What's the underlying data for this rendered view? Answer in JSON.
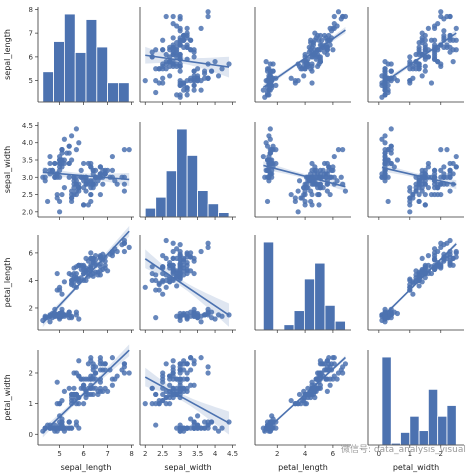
{
  "chart_data": {
    "type": "pairplot",
    "variables": [
      "sepal_length",
      "sepal_width",
      "petal_length",
      "petal_width"
    ],
    "ranges": {
      "sepal_length": [
        4.1,
        8.1
      ],
      "sepal_width": [
        1.85,
        4.6
      ],
      "petal_length": [
        0.4,
        7.3
      ],
      "petal_width": [
        -0.35,
        2.75
      ]
    },
    "ticks": {
      "sepal_length": [
        4,
        5,
        6,
        7,
        8
      ],
      "sepal_width": [
        2.0,
        2.5,
        3.0,
        3.5,
        4.0,
        4.5
      ],
      "petal_length": [
        0,
        2,
        4,
        6
      ],
      "petal_width": [
        0,
        1,
        2
      ]
    },
    "colors": {
      "points": "#4c72b0",
      "bars": "#4c72b0",
      "band": "#4c72b0",
      "axes": "#333333"
    },
    "histograms": {
      "sepal_length": {
        "bins": [
          4.3,
          4.75,
          5.2,
          5.65,
          6.1,
          6.55,
          7.0,
          7.45,
          7.9
        ],
        "counts": [
          11,
          22,
          32,
          18,
          30,
          20,
          7,
          7
        ]
      },
      "sepal_width": {
        "bins": [
          2.0,
          2.3,
          2.6,
          2.9,
          3.2,
          3.5,
          3.8,
          4.1,
          4.4
        ],
        "counts": [
          4,
          9,
          21,
          40,
          28,
          12,
          6,
          2
        ]
      },
      "petal_length": {
        "bins": [
          1.0,
          1.74,
          2.48,
          3.21,
          3.95,
          4.69,
          5.43,
          6.16,
          6.9
        ],
        "counts": [
          50,
          0,
          3,
          11,
          29,
          38,
          14,
          5
        ]
      },
      "petal_width": {
        "bins": [
          0.1,
          0.4,
          0.7,
          1.0,
          1.3,
          1.6,
          1.9,
          2.2,
          2.5
        ],
        "counts": [
          49,
          1,
          7,
          16,
          8,
          31,
          16,
          22
        ]
      }
    },
    "samples": [
      [
        5.1,
        3.5,
        1.4,
        0.2
      ],
      [
        4.9,
        3.0,
        1.4,
        0.2
      ],
      [
        4.7,
        3.2,
        1.3,
        0.2
      ],
      [
        4.6,
        3.1,
        1.5,
        0.2
      ],
      [
        5.0,
        3.6,
        1.4,
        0.2
      ],
      [
        5.4,
        3.9,
        1.7,
        0.4
      ],
      [
        4.6,
        3.4,
        1.4,
        0.3
      ],
      [
        5.0,
        3.4,
        1.5,
        0.2
      ],
      [
        4.4,
        2.9,
        1.4,
        0.2
      ],
      [
        4.9,
        3.1,
        1.5,
        0.1
      ],
      [
        5.4,
        3.7,
        1.5,
        0.2
      ],
      [
        4.8,
        3.4,
        1.6,
        0.2
      ],
      [
        4.8,
        3.0,
        1.4,
        0.1
      ],
      [
        4.3,
        3.0,
        1.1,
        0.1
      ],
      [
        5.8,
        4.0,
        1.2,
        0.2
      ],
      [
        5.7,
        4.4,
        1.5,
        0.4
      ],
      [
        5.4,
        3.9,
        1.3,
        0.4
      ],
      [
        5.1,
        3.5,
        1.4,
        0.3
      ],
      [
        5.7,
        3.8,
        1.7,
        0.3
      ],
      [
        5.1,
        3.8,
        1.5,
        0.3
      ],
      [
        5.4,
        3.4,
        1.7,
        0.2
      ],
      [
        5.1,
        3.7,
        1.5,
        0.4
      ],
      [
        4.6,
        3.6,
        1.0,
        0.2
      ],
      [
        5.1,
        3.3,
        1.7,
        0.5
      ],
      [
        4.8,
        3.4,
        1.9,
        0.2
      ],
      [
        5.0,
        3.0,
        1.6,
        0.2
      ],
      [
        5.0,
        3.4,
        1.6,
        0.4
      ],
      [
        5.2,
        3.5,
        1.5,
        0.2
      ],
      [
        5.2,
        3.4,
        1.4,
        0.2
      ],
      [
        4.7,
        3.2,
        1.6,
        0.2
      ],
      [
        4.8,
        3.1,
        1.6,
        0.2
      ],
      [
        5.4,
        3.4,
        1.5,
        0.4
      ],
      [
        5.2,
        4.1,
        1.5,
        0.1
      ],
      [
        5.5,
        4.2,
        1.4,
        0.2
      ],
      [
        4.9,
        3.1,
        1.5,
        0.2
      ],
      [
        5.0,
        3.2,
        1.2,
        0.2
      ],
      [
        5.5,
        3.5,
        1.3,
        0.2
      ],
      [
        4.4,
        3.0,
        1.3,
        0.2
      ],
      [
        5.1,
        3.4,
        1.5,
        0.2
      ],
      [
        5.0,
        3.5,
        1.3,
        0.3
      ],
      [
        4.5,
        2.3,
        1.3,
        0.3
      ],
      [
        4.4,
        3.2,
        1.3,
        0.2
      ],
      [
        5.0,
        3.5,
        1.6,
        0.6
      ],
      [
        5.1,
        3.8,
        1.9,
        0.4
      ],
      [
        4.8,
        3.0,
        1.4,
        0.3
      ],
      [
        5.1,
        3.8,
        1.6,
        0.2
      ],
      [
        4.6,
        3.2,
        1.4,
        0.2
      ],
      [
        5.3,
        3.7,
        1.5,
        0.2
      ],
      [
        5.0,
        3.3,
        1.4,
        0.2
      ],
      [
        7.0,
        3.2,
        4.7,
        1.4
      ],
      [
        6.4,
        3.2,
        4.5,
        1.5
      ],
      [
        6.9,
        3.1,
        4.9,
        1.5
      ],
      [
        5.5,
        2.3,
        4.0,
        1.3
      ],
      [
        6.5,
        2.8,
        4.6,
        1.5
      ],
      [
        5.7,
        2.8,
        4.5,
        1.3
      ],
      [
        6.3,
        3.3,
        4.7,
        1.6
      ],
      [
        4.9,
        2.4,
        3.3,
        1.0
      ],
      [
        6.6,
        2.9,
        4.6,
        1.3
      ],
      [
        5.2,
        2.7,
        3.9,
        1.4
      ],
      [
        5.0,
        2.0,
        3.5,
        1.0
      ],
      [
        5.9,
        3.0,
        4.2,
        1.5
      ],
      [
        6.0,
        2.2,
        4.0,
        1.0
      ],
      [
        6.1,
        2.9,
        4.7,
        1.4
      ],
      [
        5.6,
        2.9,
        3.6,
        1.3
      ],
      [
        6.7,
        3.1,
        4.4,
        1.4
      ],
      [
        5.6,
        3.0,
        4.5,
        1.5
      ],
      [
        5.8,
        2.7,
        4.1,
        1.0
      ],
      [
        6.2,
        2.2,
        4.5,
        1.5
      ],
      [
        5.6,
        2.5,
        3.9,
        1.1
      ],
      [
        5.9,
        3.2,
        4.8,
        1.8
      ],
      [
        6.1,
        2.8,
        4.0,
        1.3
      ],
      [
        6.3,
        2.5,
        4.9,
        1.5
      ],
      [
        6.1,
        2.8,
        4.7,
        1.2
      ],
      [
        6.4,
        2.9,
        4.3,
        1.3
      ],
      [
        6.6,
        3.0,
        4.4,
        1.4
      ],
      [
        6.8,
        2.8,
        4.8,
        1.4
      ],
      [
        6.7,
        3.0,
        5.0,
        1.7
      ],
      [
        6.0,
        2.9,
        4.5,
        1.5
      ],
      [
        5.7,
        2.6,
        3.5,
        1.0
      ],
      [
        5.5,
        2.4,
        3.8,
        1.1
      ],
      [
        5.5,
        2.4,
        3.7,
        1.0
      ],
      [
        5.8,
        2.7,
        3.9,
        1.2
      ],
      [
        6.0,
        2.7,
        5.1,
        1.6
      ],
      [
        5.4,
        3.0,
        4.5,
        1.5
      ],
      [
        6.0,
        3.4,
        4.5,
        1.6
      ],
      [
        6.7,
        3.1,
        4.7,
        1.5
      ],
      [
        6.3,
        2.3,
        4.4,
        1.3
      ],
      [
        5.6,
        3.0,
        4.1,
        1.3
      ],
      [
        5.5,
        2.5,
        4.0,
        1.3
      ],
      [
        5.5,
        2.6,
        4.4,
        1.2
      ],
      [
        6.1,
        3.0,
        4.6,
        1.4
      ],
      [
        5.8,
        2.6,
        4.0,
        1.2
      ],
      [
        5.0,
        2.3,
        3.3,
        1.0
      ],
      [
        5.6,
        2.7,
        4.2,
        1.3
      ],
      [
        5.7,
        3.0,
        4.2,
        1.2
      ],
      [
        5.7,
        2.9,
        4.2,
        1.3
      ],
      [
        6.2,
        2.9,
        4.3,
        1.3
      ],
      [
        5.1,
        2.5,
        3.0,
        1.1
      ],
      [
        5.7,
        2.8,
        4.1,
        1.3
      ],
      [
        6.3,
        3.3,
        6.0,
        2.5
      ],
      [
        5.8,
        2.7,
        5.1,
        1.9
      ],
      [
        7.1,
        3.0,
        5.9,
        2.1
      ],
      [
        6.3,
        2.9,
        5.6,
        1.8
      ],
      [
        6.5,
        3.0,
        5.8,
        2.2
      ],
      [
        7.6,
        3.0,
        6.6,
        2.1
      ],
      [
        4.9,
        2.5,
        4.5,
        1.7
      ],
      [
        7.3,
        2.9,
        6.3,
        1.8
      ],
      [
        6.7,
        2.5,
        5.8,
        1.8
      ],
      [
        7.2,
        3.6,
        6.1,
        2.5
      ],
      [
        6.5,
        3.2,
        5.1,
        2.0
      ],
      [
        6.4,
        2.7,
        5.3,
        1.9
      ],
      [
        6.8,
        3.0,
        5.5,
        2.1
      ],
      [
        5.7,
        2.5,
        5.0,
        2.0
      ],
      [
        5.8,
        2.8,
        5.1,
        2.4
      ],
      [
        6.4,
        3.2,
        5.3,
        2.3
      ],
      [
        6.5,
        3.0,
        5.5,
        1.8
      ],
      [
        7.7,
        3.8,
        6.7,
        2.2
      ],
      [
        7.7,
        2.6,
        6.9,
        2.3
      ],
      [
        6.0,
        2.2,
        5.0,
        1.5
      ],
      [
        6.9,
        3.2,
        5.7,
        2.3
      ],
      [
        5.6,
        2.8,
        4.9,
        2.0
      ],
      [
        7.7,
        2.8,
        6.7,
        2.0
      ],
      [
        6.3,
        2.7,
        4.9,
        1.8
      ],
      [
        6.7,
        3.3,
        5.7,
        2.1
      ],
      [
        7.2,
        3.2,
        6.0,
        1.8
      ],
      [
        6.2,
        2.8,
        4.8,
        1.8
      ],
      [
        6.1,
        3.0,
        4.9,
        1.8
      ],
      [
        6.4,
        2.8,
        5.6,
        2.1
      ],
      [
        7.2,
        3.0,
        5.8,
        1.6
      ],
      [
        7.4,
        2.8,
        6.1,
        1.9
      ],
      [
        7.9,
        3.8,
        6.4,
        2.0
      ],
      [
        6.4,
        2.8,
        5.6,
        2.2
      ],
      [
        6.3,
        2.8,
        5.1,
        1.5
      ],
      [
        6.1,
        2.6,
        5.6,
        1.4
      ],
      [
        7.7,
        3.0,
        6.1,
        2.3
      ],
      [
        6.3,
        3.4,
        5.6,
        2.4
      ],
      [
        6.4,
        3.1,
        5.5,
        1.8
      ],
      [
        6.0,
        3.0,
        4.8,
        1.8
      ],
      [
        6.9,
        3.1,
        5.4,
        2.1
      ],
      [
        6.7,
        3.1,
        5.6,
        2.4
      ],
      [
        6.9,
        3.1,
        5.1,
        2.3
      ],
      [
        5.8,
        2.7,
        5.1,
        1.9
      ],
      [
        6.8,
        3.2,
        5.9,
        2.3
      ],
      [
        6.7,
        3.3,
        5.7,
        2.5
      ],
      [
        6.7,
        3.0,
        5.2,
        2.3
      ],
      [
        6.3,
        2.5,
        5.0,
        1.9
      ],
      [
        6.5,
        3.0,
        5.2,
        2.0
      ],
      [
        6.2,
        3.4,
        5.4,
        2.3
      ],
      [
        5.9,
        3.0,
        5.1,
        1.8
      ]
    ],
    "watermark": "微信号: data_analysis_visual"
  }
}
